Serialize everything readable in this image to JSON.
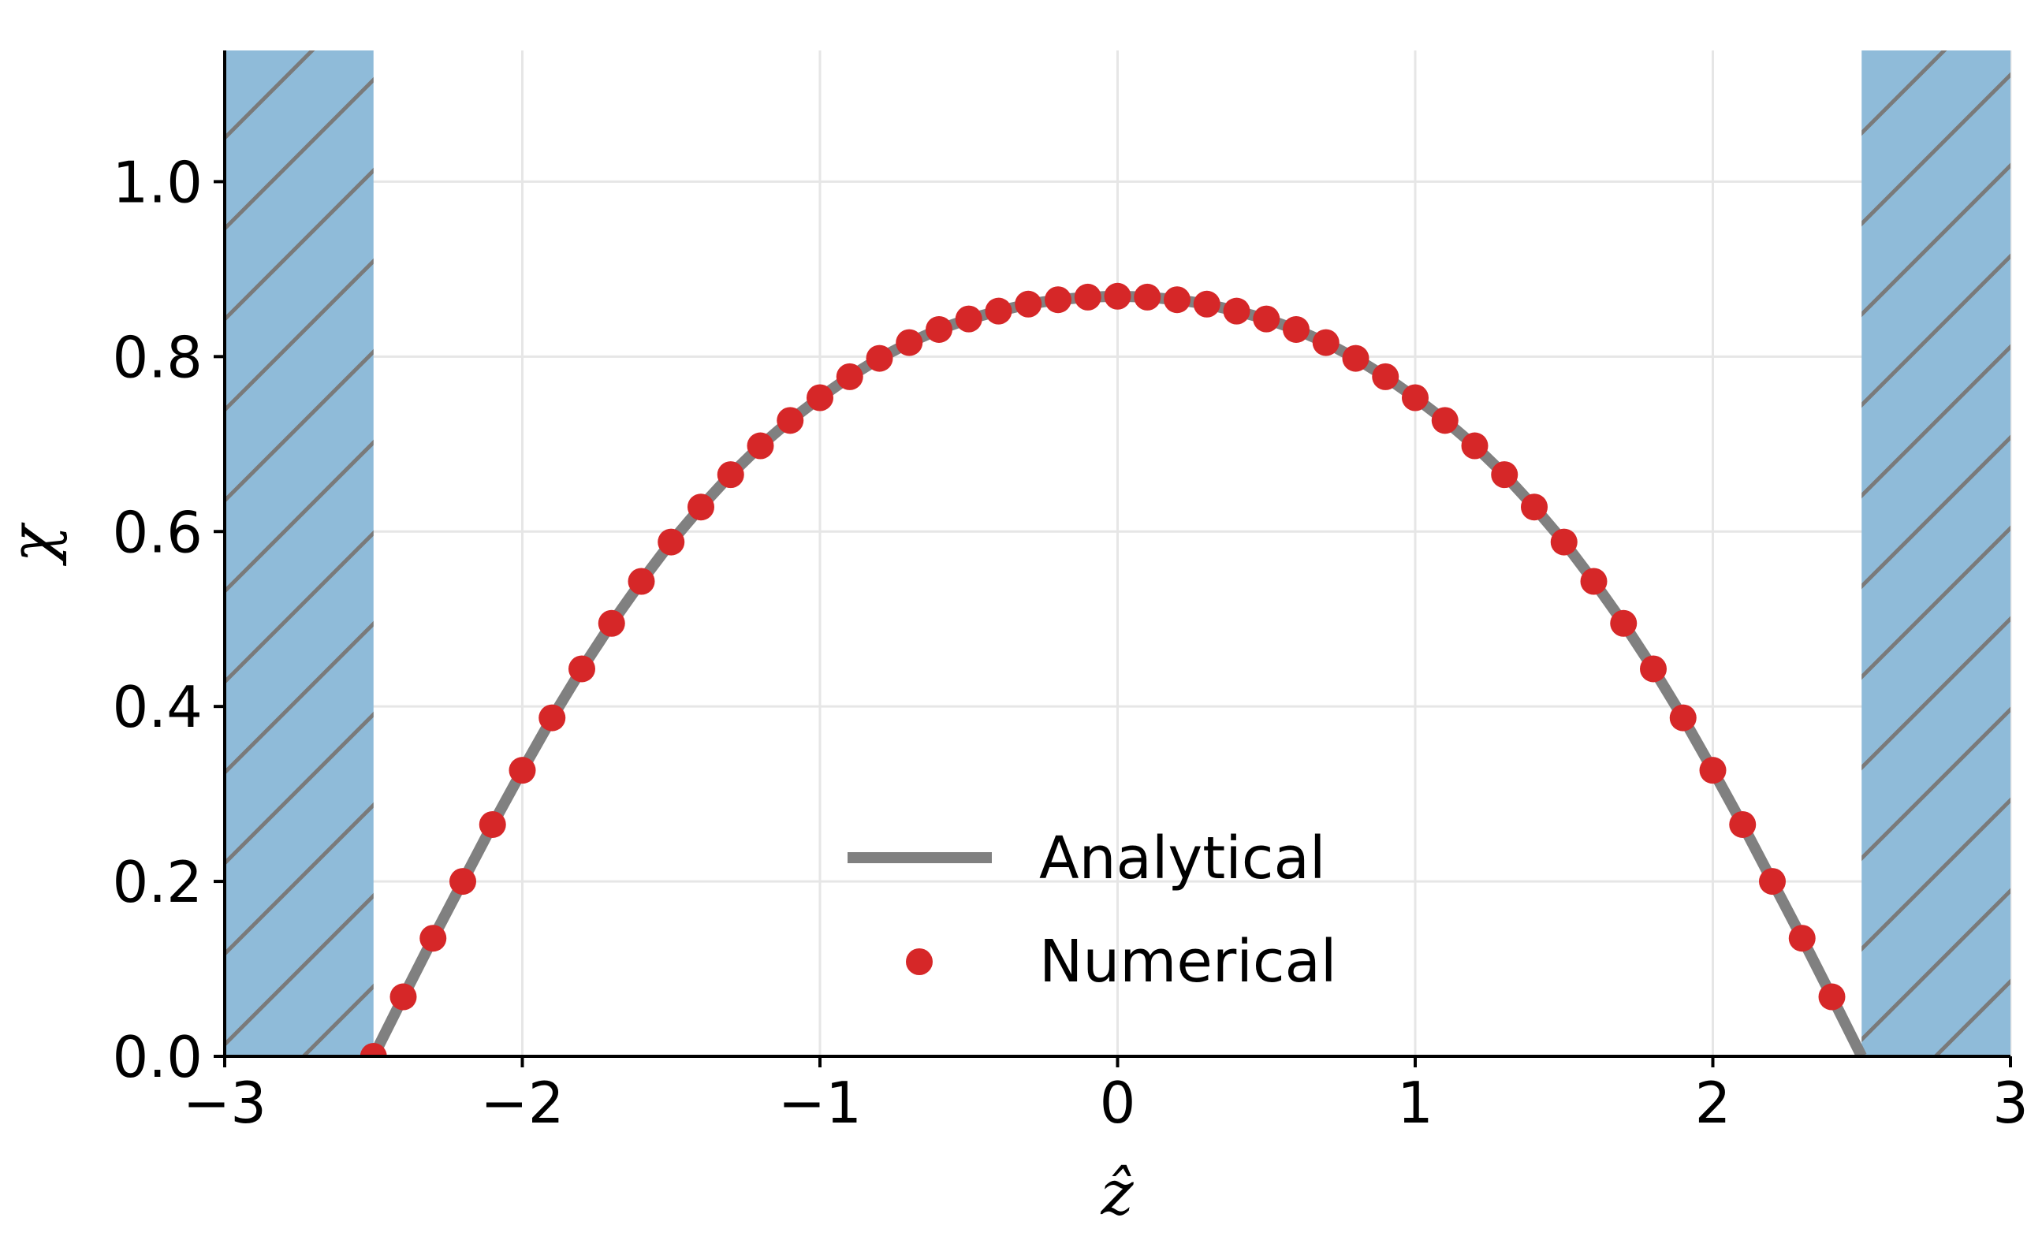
{
  "chart_data": {
    "type": "line",
    "xlabel": "ẑ",
    "ylabel": "χ",
    "xlim": [
      -3,
      3
    ],
    "ylim": [
      0,
      1.15
    ],
    "grid": true,
    "x_ticks": [
      -3,
      -2,
      -1,
      0,
      1,
      2,
      3
    ],
    "x_tick_labels": [
      "−3",
      "−2",
      "−1",
      "0",
      "1",
      "2",
      "3"
    ],
    "y_ticks": [
      0.0,
      0.2,
      0.4,
      0.6,
      0.8,
      1.0
    ],
    "y_tick_labels": [
      "0.0",
      "0.2",
      "0.4",
      "0.6",
      "0.8",
      "1.0"
    ],
    "legend_position": "lower-center",
    "shaded_regions": [
      {
        "x": [
          -3,
          -2.5
        ],
        "color": "#8fbbd9",
        "hatch": "diagonal"
      },
      {
        "x": [
          2.5,
          3
        ],
        "color": "#8fbbd9",
        "hatch": "diagonal"
      }
    ],
    "series": [
      {
        "name": "Analytical",
        "style": "line",
        "color": "#808080",
        "x": [
          -2.5,
          -2.4,
          -2.3,
          -2.2,
          -2.1,
          -2.0,
          -1.9,
          -1.8,
          -1.7,
          -1.6,
          -1.5,
          -1.4,
          -1.3,
          -1.2,
          -1.1,
          -1.0,
          -0.9,
          -0.8,
          -0.7,
          -0.6,
          -0.5,
          -0.4,
          -0.3,
          -0.2,
          -0.1,
          0.0,
          0.1,
          0.2,
          0.3,
          0.4,
          0.5,
          0.6,
          0.7,
          0.8,
          0.9,
          1.0,
          1.1,
          1.2,
          1.3,
          1.4,
          1.5,
          1.6,
          1.7,
          1.8,
          1.9,
          2.0,
          2.1,
          2.2,
          2.3,
          2.4,
          2.5
        ],
        "y": [
          0.0,
          0.068,
          0.135,
          0.2,
          0.265,
          0.327,
          0.387,
          0.443,
          0.495,
          0.543,
          0.588,
          0.628,
          0.665,
          0.698,
          0.727,
          0.753,
          0.777,
          0.798,
          0.816,
          0.831,
          0.843,
          0.852,
          0.86,
          0.865,
          0.868,
          0.869,
          0.868,
          0.865,
          0.86,
          0.852,
          0.843,
          0.831,
          0.816,
          0.798,
          0.777,
          0.753,
          0.727,
          0.698,
          0.665,
          0.628,
          0.588,
          0.543,
          0.495,
          0.443,
          0.387,
          0.327,
          0.265,
          0.2,
          0.135,
          0.068,
          0.0
        ]
      },
      {
        "name": "Numerical",
        "style": "scatter",
        "color": "#d62728",
        "x": [
          -2.5,
          -2.4,
          -2.3,
          -2.2,
          -2.1,
          -2.0,
          -1.9,
          -1.8,
          -1.7,
          -1.6,
          -1.5,
          -1.4,
          -1.3,
          -1.2,
          -1.1,
          -1.0,
          -0.9,
          -0.8,
          -0.7,
          -0.6,
          -0.5,
          -0.4,
          -0.3,
          -0.2,
          -0.1,
          0.0,
          0.1,
          0.2,
          0.3,
          0.4,
          0.5,
          0.6,
          0.7,
          0.8,
          0.9,
          1.0,
          1.1,
          1.2,
          1.3,
          1.4,
          1.5,
          1.6,
          1.7,
          1.8,
          1.9,
          2.0,
          2.1,
          2.2,
          2.3,
          2.4
        ],
        "y": [
          0.0,
          0.068,
          0.135,
          0.2,
          0.265,
          0.327,
          0.387,
          0.443,
          0.495,
          0.543,
          0.588,
          0.628,
          0.665,
          0.698,
          0.727,
          0.753,
          0.777,
          0.798,
          0.816,
          0.831,
          0.843,
          0.852,
          0.86,
          0.865,
          0.868,
          0.869,
          0.868,
          0.865,
          0.86,
          0.852,
          0.843,
          0.831,
          0.816,
          0.798,
          0.777,
          0.753,
          0.727,
          0.698,
          0.665,
          0.628,
          0.588,
          0.543,
          0.495,
          0.443,
          0.387,
          0.327,
          0.265,
          0.2,
          0.135,
          0.068
        ]
      }
    ]
  }
}
